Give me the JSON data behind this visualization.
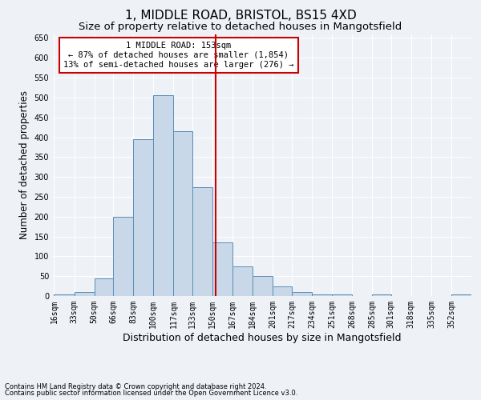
{
  "title1": "1, MIDDLE ROAD, BRISTOL, BS15 4XD",
  "title2": "Size of property relative to detached houses in Mangotsfield",
  "xlabel": "Distribution of detached houses by size in Mangotsfield",
  "ylabel": "Number of detached properties",
  "bins": [
    "16sqm",
    "33sqm",
    "50sqm",
    "66sqm",
    "83sqm",
    "100sqm",
    "117sqm",
    "133sqm",
    "150sqm",
    "167sqm",
    "184sqm",
    "201sqm",
    "217sqm",
    "234sqm",
    "251sqm",
    "268sqm",
    "285sqm",
    "301sqm",
    "318sqm",
    "335sqm",
    "352sqm"
  ],
  "bin_edges": [
    16,
    33,
    50,
    66,
    83,
    100,
    117,
    133,
    150,
    167,
    184,
    201,
    217,
    234,
    251,
    268,
    285,
    301,
    318,
    335,
    352,
    369
  ],
  "heights": [
    5,
    10,
    45,
    200,
    395,
    505,
    415,
    275,
    135,
    75,
    50,
    25,
    10,
    5,
    5,
    0,
    5,
    0,
    0,
    0,
    5
  ],
  "bar_color": "#c8d8e8",
  "bar_edge_color": "#5b8db8",
  "vline_x": 153,
  "vline_color": "#cc0000",
  "ylim": [
    0,
    660
  ],
  "yticks": [
    0,
    50,
    100,
    150,
    200,
    250,
    300,
    350,
    400,
    450,
    500,
    550,
    600,
    650
  ],
  "annotation_line1": "1 MIDDLE ROAD: 153sqm",
  "annotation_line2": "← 87% of detached houses are smaller (1,854)",
  "annotation_line3": "13% of semi-detached houses are larger (276) →",
  "annotation_box_color": "#ffffff",
  "annotation_box_edge": "#cc0000",
  "footnote1": "Contains HM Land Registry data © Crown copyright and database right 2024.",
  "footnote2": "Contains public sector information licensed under the Open Government Licence v3.0.",
  "bg_color": "#eef2f7",
  "grid_color": "#ffffff",
  "title1_fontsize": 11,
  "title2_fontsize": 9.5,
  "xlabel_fontsize": 9,
  "ylabel_fontsize": 8.5,
  "tick_fontsize": 7,
  "annot_fontsize": 7.5,
  "footnote_fontsize": 6
}
